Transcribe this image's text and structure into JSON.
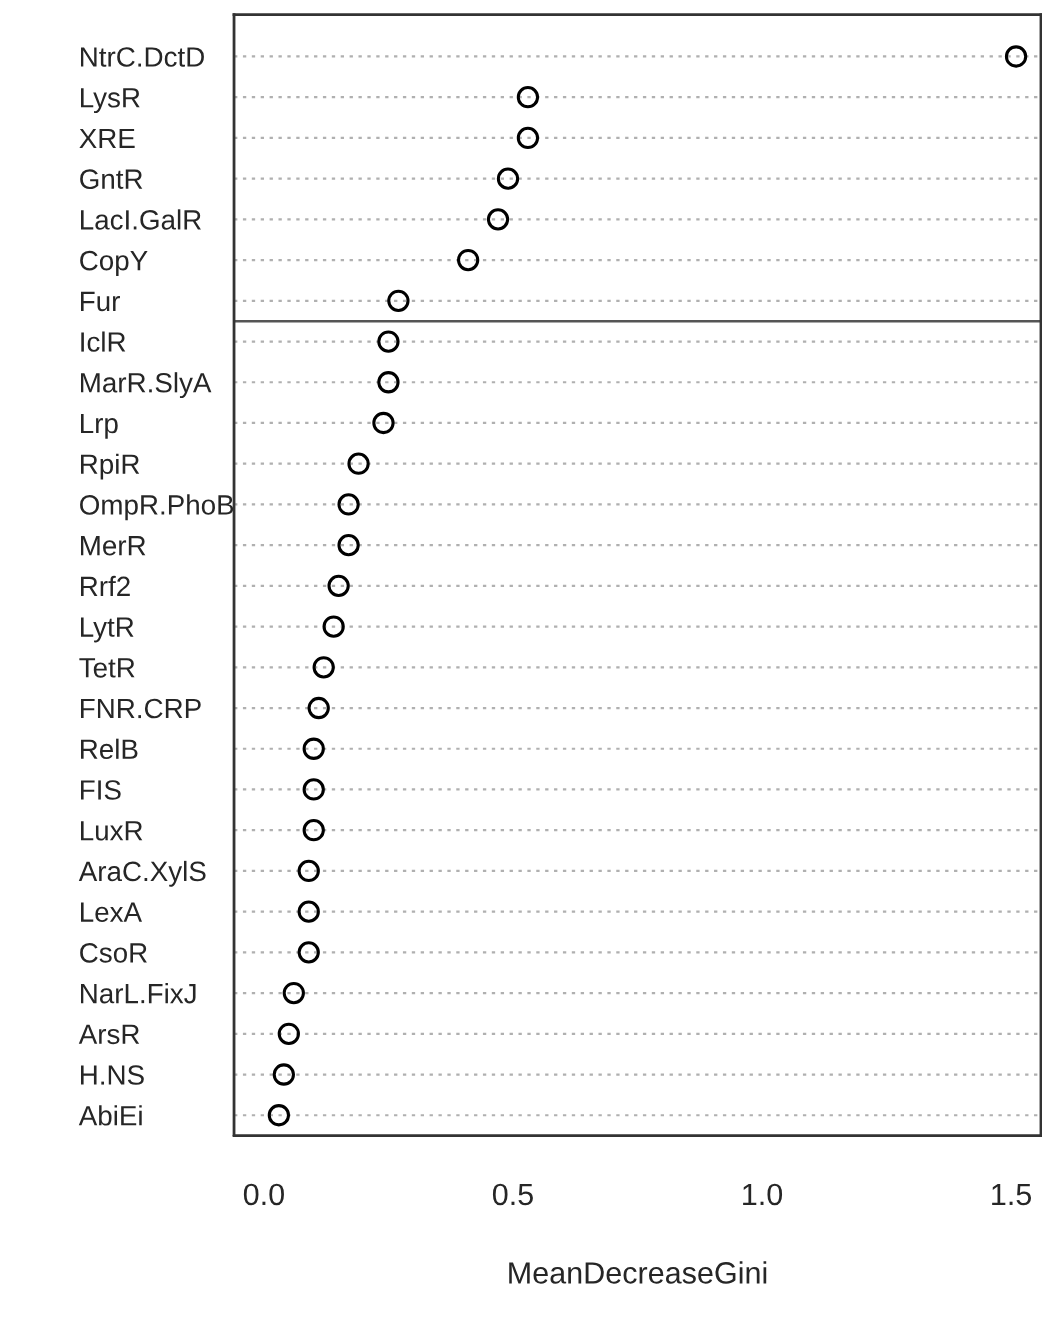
{
  "chart_data": {
    "type": "scatter",
    "orientation": "horizontal",
    "xlabel": "MeanDecreaseGini",
    "categories": [
      "NtrC.DctD",
      "LysR",
      "XRE",
      "GntR",
      "LacI.GalR",
      "CopY",
      "Fur",
      "IclR",
      "MarR.SlyA",
      "Lrp",
      "RpiR",
      "OmpR.PhoB",
      "MerR",
      "Rrf2",
      "LytR",
      "TetR",
      "FNR.CRP",
      "RelB",
      "FIS",
      "LuxR",
      "AraC.XylS",
      "LexA",
      "CsoR",
      "NarL.FixJ",
      "ArsR",
      "H.NS",
      "AbiEi"
    ],
    "series": [
      {
        "color": "#000000",
        "values": [
          1.51,
          0.53,
          0.53,
          0.49,
          0.47,
          0.41,
          0.27,
          0.25,
          0.25,
          0.24,
          0.19,
          0.17,
          0.17,
          0.15,
          0.14,
          0.12,
          0.11,
          0.1,
          0.1,
          0.1,
          0.09,
          0.09,
          0.09,
          0.06,
          0.05,
          0.04,
          0.03
        ]
      }
    ],
    "xlim": [
      -0.06,
      1.56
    ],
    "xticks": [
      {
        "value": 0,
        "label": "0.0"
      },
      {
        "value": 0.5,
        "label": "0.5"
      },
      {
        "value": 1.0,
        "label": "1.0"
      },
      {
        "value": 1.5,
        "label": "1.5"
      }
    ],
    "ref_lines": [
      {
        "axis": "y",
        "value": "Fur",
        "color": "#555555"
      }
    ],
    "grid": "y",
    "marker": "circle"
  }
}
